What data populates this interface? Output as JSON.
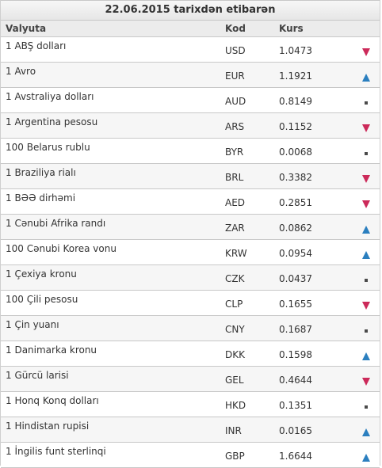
{
  "title": "22.06.2015 tarixdən etibarən",
  "columns": {
    "currency": "Valyuta",
    "code": "Kod",
    "rate": "Kurs"
  },
  "colors": {
    "up": "#2b7fbf",
    "down": "#cc2a5a",
    "same": "#4a4a4a"
  },
  "rows": [
    {
      "name": "1 ABŞ dolları",
      "code": "USD",
      "rate": "1.0473",
      "trend": "down"
    },
    {
      "name": "1 Avro",
      "code": "EUR",
      "rate": "1.1921",
      "trend": "up"
    },
    {
      "name": "1 Avstraliya dolları",
      "code": "AUD",
      "rate": "0.8149",
      "trend": "same"
    },
    {
      "name": "1 Argentina pesosu",
      "code": "ARS",
      "rate": "0.1152",
      "trend": "down"
    },
    {
      "name": "100 Belarus rublu",
      "code": "BYR",
      "rate": "0.0068",
      "trend": "same"
    },
    {
      "name": "1 Braziliya rialı",
      "code": "BRL",
      "rate": "0.3382",
      "trend": "down"
    },
    {
      "name": "1 BƏƏ dirhəmi",
      "code": "AED",
      "rate": "0.2851",
      "trend": "down"
    },
    {
      "name": "1 Cənubi Afrika randı",
      "code": "ZAR",
      "rate": "0.0862",
      "trend": "up"
    },
    {
      "name": "100 Cənubi Korea vonu",
      "code": "KRW",
      "rate": "0.0954",
      "trend": "up"
    },
    {
      "name": "1 Çexiya kronu",
      "code": "CZK",
      "rate": "0.0437",
      "trend": "same"
    },
    {
      "name": "100 Çili pesosu",
      "code": "CLP",
      "rate": "0.1655",
      "trend": "down"
    },
    {
      "name": "1 Çin yuanı",
      "code": "CNY",
      "rate": "0.1687",
      "trend": "same"
    },
    {
      "name": "1 Danimarka kronu",
      "code": "DKK",
      "rate": "0.1598",
      "trend": "up"
    },
    {
      "name": "1 Gürcü larisi",
      "code": "GEL",
      "rate": "0.4644",
      "trend": "down"
    },
    {
      "name": "1 Honq Konq dolları",
      "code": "HKD",
      "rate": "0.1351",
      "trend": "same"
    },
    {
      "name": "1 Hindistan rupisi",
      "code": "INR",
      "rate": "0.0165",
      "trend": "up"
    },
    {
      "name": "1 İngilis funt sterlinqi",
      "code": "GBP",
      "rate": "1.6644",
      "trend": "up"
    }
  ]
}
